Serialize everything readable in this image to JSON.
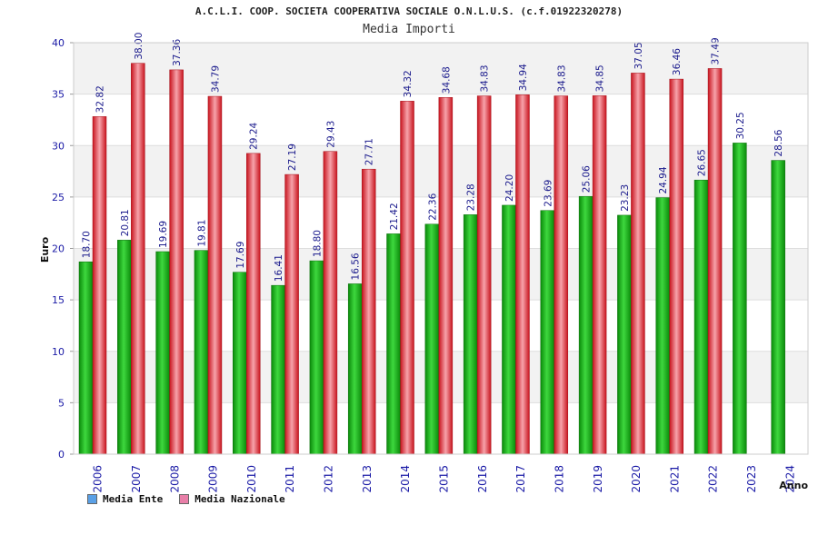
{
  "chart_data": {
    "type": "bar",
    "title": "A.C.L.I. COOP. SOCIETA COOPERATIVA SOCIALE O.N.L.U.S. (c.f.01922320278)",
    "subtitle": "Media Importi",
    "xlabel": "Anno",
    "ylabel": "Euro",
    "ylim": [
      0,
      40
    ],
    "yticks": [
      0,
      5,
      10,
      15,
      20,
      25,
      30,
      35,
      40
    ],
    "categories": [
      "2006",
      "2007",
      "2008",
      "2009",
      "2010",
      "2011",
      "2012",
      "2013",
      "2014",
      "2015",
      "2016",
      "2017",
      "2018",
      "2019",
      "2020",
      "2021",
      "2022",
      "2023",
      "2024"
    ],
    "series": [
      {
        "name": "Media Ente",
        "color": "#1fbf1f",
        "legend_color": "#5aa0e6",
        "values": [
          18.7,
          20.81,
          19.69,
          19.81,
          17.69,
          16.41,
          18.8,
          16.56,
          21.42,
          22.36,
          23.28,
          24.2,
          23.69,
          25.06,
          23.23,
          24.94,
          26.65,
          30.25,
          28.56
        ],
        "labels": [
          "18.70",
          "20.81",
          "19.69",
          "19.81",
          "17.69",
          "16.41",
          "18.80",
          "16.56",
          "21.42",
          "22.36",
          "23.28",
          "24.20",
          "23.69",
          "25.06",
          "23.23",
          "24.94",
          "26.65",
          "30.25",
          "28.56"
        ]
      },
      {
        "name": "Media Nazionale",
        "color": "#e8303c",
        "legend_color": "#e87fa8",
        "values": [
          32.82,
          38.0,
          37.36,
          34.79,
          29.24,
          27.19,
          29.43,
          27.71,
          34.32,
          34.68,
          34.83,
          34.94,
          34.83,
          34.85,
          37.05,
          36.46,
          37.49,
          null,
          null
        ],
        "labels": [
          "32.82",
          "38.00",
          "37.36",
          "34.79",
          "29.24",
          "27.19",
          "29.43",
          "27.71",
          "34.32",
          "34.68",
          "34.83",
          "34.94",
          "34.83",
          "34.85",
          "37.05",
          "36.46",
          "37.49",
          null,
          null
        ]
      }
    ]
  }
}
